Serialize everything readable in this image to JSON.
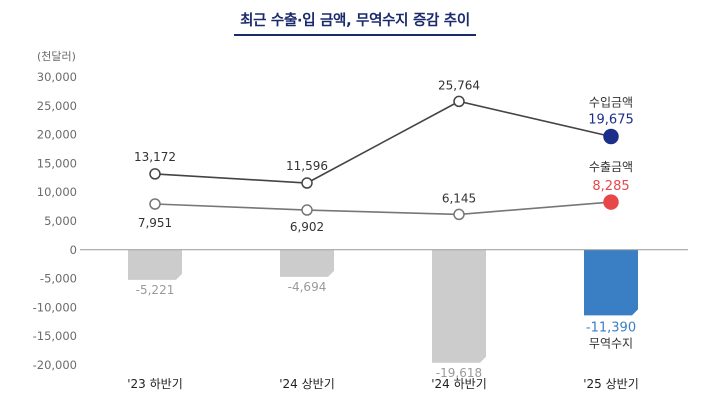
{
  "title": "최근 수출·입 금액, 무역수지 증감 추이",
  "unit_label": "(천달러)",
  "chart_data": {
    "type": "bar+line",
    "title": "최근 수출·입 금액, 무역수지 증감 추이",
    "ylabel": "(천달러)",
    "ylim": [
      -20000,
      30000
    ],
    "yticks": [
      30000,
      25000,
      20000,
      15000,
      10000,
      5000,
      0,
      -5000,
      -10000,
      -15000,
      -20000
    ],
    "ytick_labels": [
      "30,000",
      "25,000",
      "20,000",
      "15,000",
      "10,000",
      "5,000",
      "0",
      "-5,000",
      "-10,000",
      "-15,000",
      "-20,000"
    ],
    "categories": [
      "'23 하반기",
      "'24 상반기",
      "'24 하반기",
      "'25 상반기"
    ],
    "series": [
      {
        "name": "수입금액",
        "kind": "line",
        "values": [
          13172,
          11596,
          25764,
          19675
        ],
        "labels": [
          "13,172",
          "11,596",
          "25,764",
          "19,675"
        ],
        "color": "#1b2f8a"
      },
      {
        "name": "수출금액",
        "kind": "line",
        "values": [
          7951,
          6902,
          6145,
          8285
        ],
        "labels": [
          "7,951",
          "6,902",
          "6,145",
          "8,285"
        ],
        "color": "#e8474a"
      },
      {
        "name": "무역수지",
        "kind": "bar",
        "values": [
          -5221,
          -4694,
          -19618,
          -11390
        ],
        "labels": [
          "-5,221",
          "-4,694",
          "-19,618",
          "-11,390"
        ],
        "color": "#cccccc",
        "highlight_color": "#3a7fc4"
      }
    ],
    "grid": false,
    "legend": "inline-right"
  }
}
